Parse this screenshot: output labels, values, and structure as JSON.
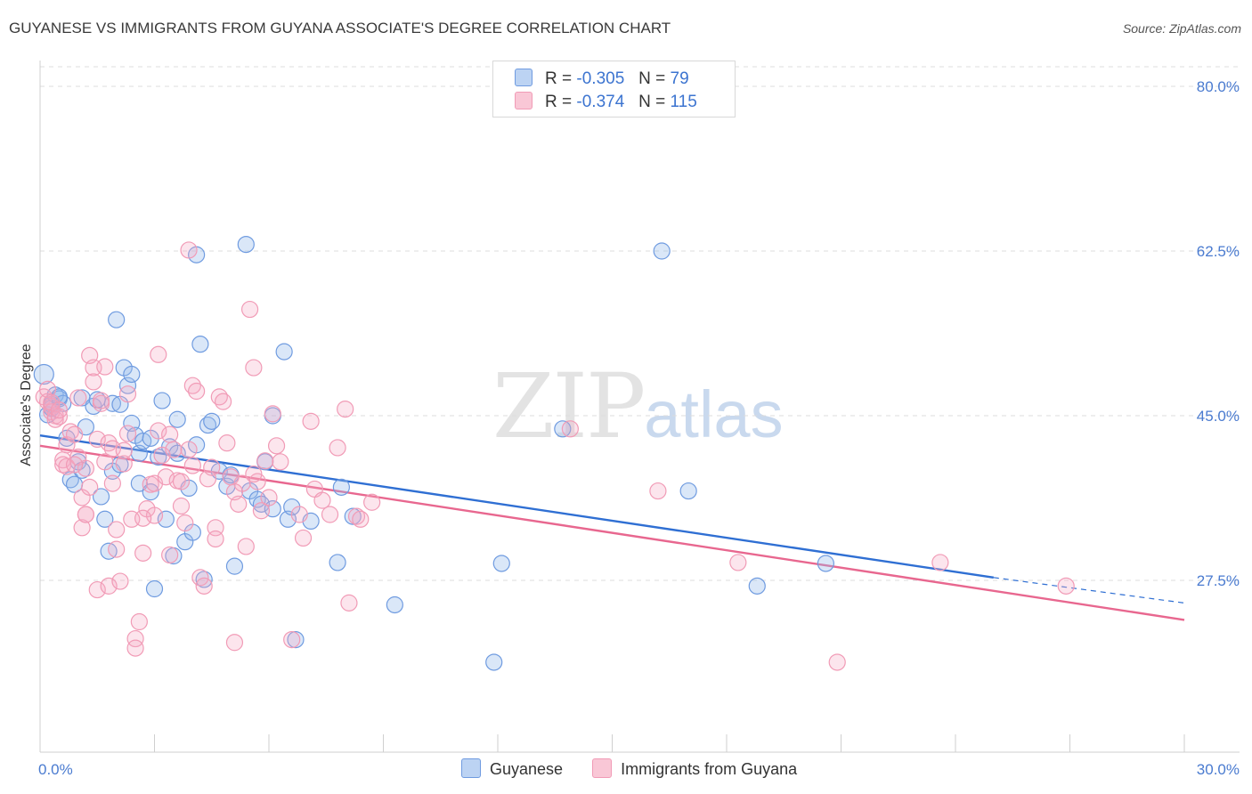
{
  "header": {
    "title": "GUYANESE VS IMMIGRANTS FROM GUYANA ASSOCIATE'S DEGREE CORRELATION CHART",
    "source": "Source: ZipAtlas.com"
  },
  "watermark": {
    "zip": "ZIP",
    "atlas": "atlas"
  },
  "legend_top": [
    {
      "r_label": "R =",
      "r_value": "-0.305",
      "n_label": "N =",
      "n_value": "79"
    },
    {
      "r_label": "R =",
      "r_value": "-0.374",
      "n_label": "N =",
      "n_value": "115"
    }
  ],
  "legend_bottom": [
    "Guyanese",
    "Immigrants from Guyana"
  ],
  "chart_data": {
    "type": "scatter",
    "title": "GUYANESE VS IMMIGRANTS FROM GUYANA ASSOCIATE'S DEGREE CORRELATION CHART",
    "ylabel": "Associate's Degree",
    "xlabel": "",
    "xlim": [
      0,
      30
    ],
    "ylim": [
      10,
      82
    ],
    "x_ticks": [
      "0.0%",
      "30.0%"
    ],
    "y_ticks": [
      {
        "value": 80,
        "label": "80.0%"
      },
      {
        "value": 62.5,
        "label": "62.5%"
      },
      {
        "value": 45,
        "label": "45.0%"
      },
      {
        "value": 27.5,
        "label": "27.5%"
      }
    ],
    "grid": "horizontal dashed",
    "colors": {
      "blue": "#6f9be0",
      "blue_line": "#2f6fd3",
      "pink": "#f19bb6",
      "pink_line": "#e8678f"
    },
    "series": [
      {
        "name": "Guyanese",
        "color": "#6f9be0",
        "trend": {
          "x": [
            0,
            25
          ],
          "y": [
            42.9,
            27.8
          ],
          "dashed_to": [
            30,
            25.1
          ]
        },
        "points": [
          [
            0.1,
            49.4
          ],
          [
            0.2,
            45.1
          ],
          [
            0.3,
            46.2
          ],
          [
            0.4,
            47.2
          ],
          [
            0.5,
            46.8
          ],
          [
            0.6,
            46.3
          ],
          [
            0.7,
            42.6
          ],
          [
            0.8,
            38.2
          ],
          [
            0.9,
            37.7
          ],
          [
            1.0,
            40.1
          ],
          [
            1.1,
            39.2
          ],
          [
            1.1,
            46.9
          ],
          [
            1.2,
            43.8
          ],
          [
            1.4,
            46.0
          ],
          [
            1.5,
            46.7
          ],
          [
            1.6,
            36.4
          ],
          [
            1.7,
            34.0
          ],
          [
            1.8,
            30.6
          ],
          [
            1.9,
            39.1
          ],
          [
            1.9,
            46.3
          ],
          [
            2.0,
            55.2
          ],
          [
            2.1,
            39.8
          ],
          [
            2.2,
            50.1
          ],
          [
            2.3,
            48.2
          ],
          [
            2.4,
            44.2
          ],
          [
            2.4,
            49.4
          ],
          [
            2.5,
            42.9
          ],
          [
            2.6,
            37.8
          ],
          [
            2.6,
            41.0
          ],
          [
            2.7,
            42.3
          ],
          [
            2.9,
            36.9
          ],
          [
            2.9,
            42.6
          ],
          [
            3.0,
            26.6
          ],
          [
            3.1,
            40.6
          ],
          [
            3.2,
            46.6
          ],
          [
            3.3,
            34.0
          ],
          [
            3.4,
            41.7
          ],
          [
            3.5,
            30.1
          ],
          [
            3.6,
            41.0
          ],
          [
            3.6,
            44.6
          ],
          [
            3.8,
            31.6
          ],
          [
            3.9,
            37.3
          ],
          [
            4.0,
            32.6
          ],
          [
            4.1,
            41.9
          ],
          [
            4.1,
            62.1
          ],
          [
            4.2,
            52.6
          ],
          [
            4.3,
            27.6
          ],
          [
            4.4,
            44.0
          ],
          [
            4.5,
            44.4
          ],
          [
            4.7,
            39.1
          ],
          [
            4.9,
            37.5
          ],
          [
            5.0,
            38.7
          ],
          [
            5.1,
            29.0
          ],
          [
            5.4,
            63.2
          ],
          [
            5.5,
            37.0
          ],
          [
            5.7,
            36.1
          ],
          [
            5.8,
            35.6
          ],
          [
            5.9,
            40.1
          ],
          [
            6.1,
            35.1
          ],
          [
            6.1,
            45.0
          ],
          [
            6.4,
            51.8
          ],
          [
            6.5,
            34.0
          ],
          [
            6.6,
            35.3
          ],
          [
            6.7,
            21.2
          ],
          [
            7.1,
            33.8
          ],
          [
            7.8,
            29.4
          ],
          [
            7.9,
            37.4
          ],
          [
            8.2,
            34.3
          ],
          [
            9.3,
            24.9
          ],
          [
            11.9,
            18.8
          ],
          [
            12.1,
            29.3
          ],
          [
            13.7,
            43.6
          ],
          [
            16.3,
            62.5
          ],
          [
            17.0,
            37.0
          ],
          [
            18.8,
            26.9
          ],
          [
            20.6,
            29.3
          ],
          [
            0.3,
            45.8
          ],
          [
            0.5,
            47.0
          ],
          [
            2.1,
            46.2
          ]
        ]
      },
      {
        "name": "Immigrants from Guyana",
        "color": "#f19bb6",
        "trend": {
          "x": [
            0,
            30
          ],
          "y": [
            41.8,
            23.3
          ]
        },
        "points": [
          [
            0.1,
            47.0
          ],
          [
            0.2,
            46.5
          ],
          [
            0.2,
            47.8
          ],
          [
            0.3,
            46.0
          ],
          [
            0.3,
            45.4
          ],
          [
            0.4,
            45.0
          ],
          [
            0.4,
            44.6
          ],
          [
            0.5,
            44.9
          ],
          [
            0.6,
            40.3
          ],
          [
            0.6,
            39.8
          ],
          [
            0.7,
            39.6
          ],
          [
            0.7,
            41.9
          ],
          [
            0.8,
            43.3
          ],
          [
            0.9,
            43.0
          ],
          [
            1.0,
            46.9
          ],
          [
            1.0,
            40.6
          ],
          [
            1.1,
            36.3
          ],
          [
            1.1,
            33.1
          ],
          [
            1.2,
            34.5
          ],
          [
            1.2,
            39.4
          ],
          [
            1.3,
            37.4
          ],
          [
            1.3,
            51.4
          ],
          [
            1.4,
            50.1
          ],
          [
            1.4,
            48.6
          ],
          [
            1.5,
            42.5
          ],
          [
            1.5,
            26.5
          ],
          [
            1.6,
            46.3
          ],
          [
            1.7,
            50.2
          ],
          [
            1.7,
            40.1
          ],
          [
            1.8,
            26.9
          ],
          [
            1.8,
            42.1
          ],
          [
            1.9,
            37.8
          ],
          [
            1.9,
            41.5
          ],
          [
            2.0,
            32.9
          ],
          [
            2.0,
            30.8
          ],
          [
            2.1,
            27.4
          ],
          [
            2.2,
            39.9
          ],
          [
            2.2,
            41.3
          ],
          [
            2.3,
            47.3
          ],
          [
            2.4,
            34.0
          ],
          [
            2.5,
            21.3
          ],
          [
            2.5,
            20.3
          ],
          [
            2.6,
            23.1
          ],
          [
            2.7,
            30.4
          ],
          [
            2.8,
            35.1
          ],
          [
            2.9,
            37.7
          ],
          [
            3.0,
            37.8
          ],
          [
            3.0,
            34.4
          ],
          [
            3.1,
            43.4
          ],
          [
            3.1,
            51.5
          ],
          [
            3.2,
            40.8
          ],
          [
            3.3,
            38.5
          ],
          [
            3.4,
            43.0
          ],
          [
            3.5,
            41.4
          ],
          [
            3.6,
            38.1
          ],
          [
            3.7,
            35.4
          ],
          [
            3.7,
            38.0
          ],
          [
            3.8,
            33.6
          ],
          [
            3.9,
            41.4
          ],
          [
            3.9,
            62.6
          ],
          [
            4.0,
            48.2
          ],
          [
            4.1,
            47.6
          ],
          [
            4.2,
            27.8
          ],
          [
            4.3,
            26.9
          ],
          [
            4.4,
            38.3
          ],
          [
            4.5,
            39.5
          ],
          [
            4.6,
            33.1
          ],
          [
            4.7,
            47.0
          ],
          [
            4.8,
            46.5
          ],
          [
            4.9,
            42.1
          ],
          [
            5.0,
            38.5
          ],
          [
            5.1,
            20.9
          ],
          [
            5.2,
            35.6
          ],
          [
            5.3,
            37.8
          ],
          [
            5.4,
            31.1
          ],
          [
            5.5,
            56.3
          ],
          [
            5.6,
            50.1
          ],
          [
            5.7,
            38.0
          ],
          [
            5.8,
            34.9
          ],
          [
            5.9,
            40.2
          ],
          [
            6.0,
            36.3
          ],
          [
            6.1,
            45.2
          ],
          [
            6.2,
            41.8
          ],
          [
            6.6,
            21.2
          ],
          [
            6.8,
            34.5
          ],
          [
            6.9,
            32.0
          ],
          [
            7.2,
            37.2
          ],
          [
            7.4,
            36.0
          ],
          [
            7.6,
            34.5
          ],
          [
            7.8,
            41.6
          ],
          [
            8.0,
            45.7
          ],
          [
            8.1,
            25.1
          ],
          [
            8.3,
            34.3
          ],
          [
            8.7,
            35.8
          ],
          [
            13.9,
            43.6
          ],
          [
            16.2,
            37.0
          ],
          [
            18.3,
            29.4
          ],
          [
            20.9,
            18.8
          ],
          [
            23.6,
            29.4
          ],
          [
            26.9,
            26.9
          ],
          [
            0.3,
            46.4
          ],
          [
            0.5,
            45.6
          ],
          [
            0.9,
            39.8
          ],
          [
            1.2,
            34.5
          ],
          [
            1.6,
            46.6
          ],
          [
            2.3,
            43.1
          ],
          [
            2.7,
            34.1
          ],
          [
            3.4,
            30.2
          ],
          [
            4.0,
            39.7
          ],
          [
            4.6,
            31.9
          ],
          [
            5.1,
            36.9
          ],
          [
            5.6,
            38.8
          ],
          [
            6.3,
            40.1
          ],
          [
            7.1,
            44.4
          ],
          [
            8.4,
            34.0
          ]
        ]
      }
    ]
  }
}
